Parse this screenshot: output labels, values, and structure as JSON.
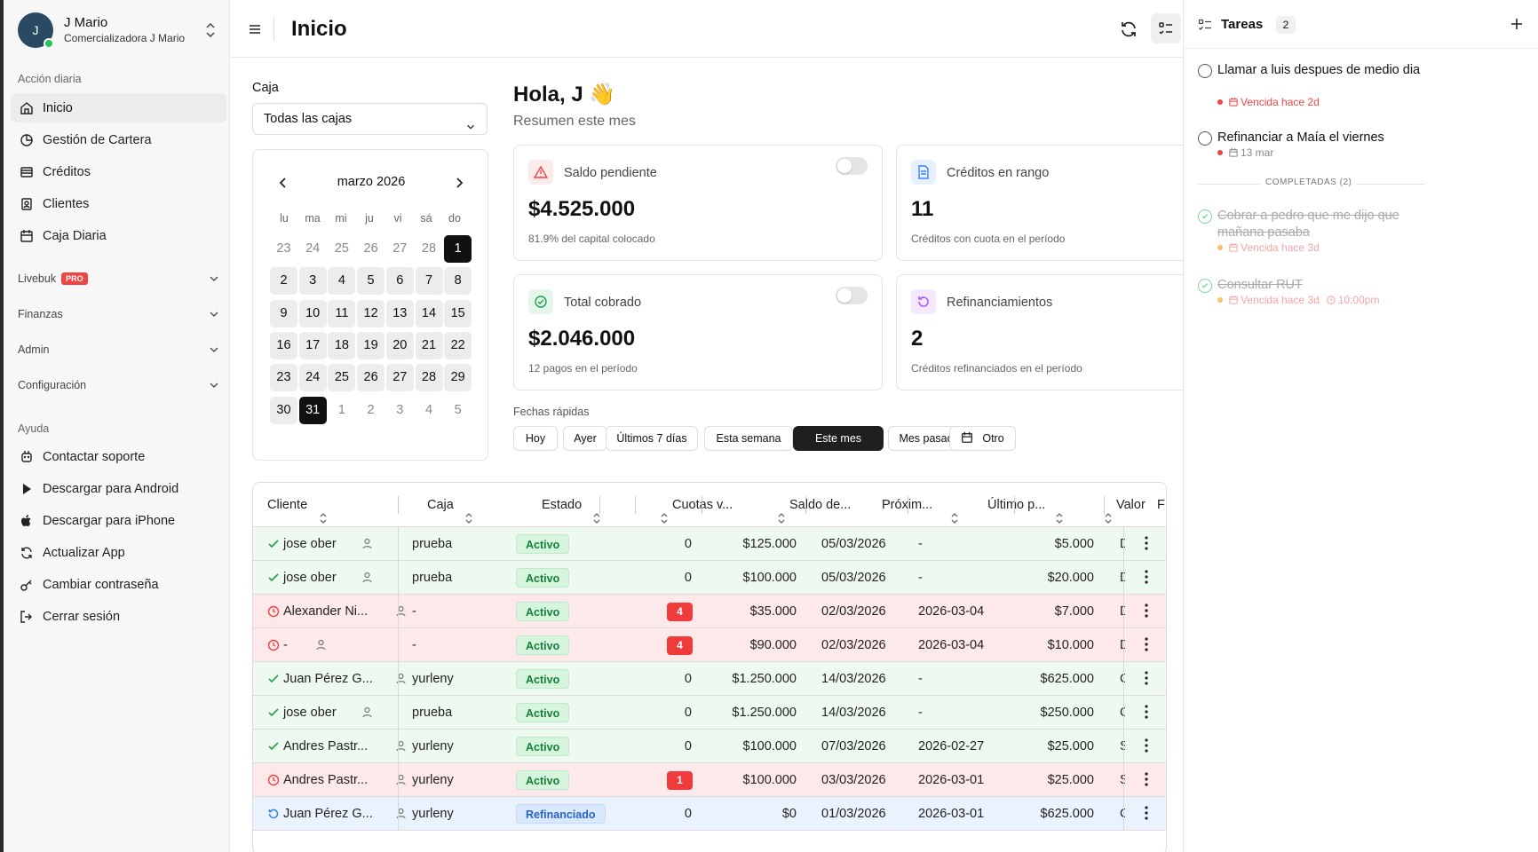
{
  "account": {
    "initial": "J",
    "name": "J Mario",
    "company": "Comercializadora J Mario"
  },
  "sidebar": {
    "sections": {
      "daily": "Acción diaria",
      "help": "Ayuda"
    },
    "items": [
      {
        "label": "Inicio",
        "icon": "home-icon"
      },
      {
        "label": "Gestión de Cartera",
        "icon": "portfolio-icon"
      },
      {
        "label": "Créditos",
        "icon": "credits-icon"
      },
      {
        "label": "Clientes",
        "icon": "clients-icon"
      },
      {
        "label": "Caja Diaria",
        "icon": "calendar-icon"
      }
    ],
    "groups": [
      {
        "label": "Livebuk",
        "badge": "PRO"
      },
      {
        "label": "Finanzas"
      },
      {
        "label": "Admin"
      },
      {
        "label": "Configuración"
      }
    ],
    "help_items": [
      {
        "label": "Contactar soporte",
        "icon": "support-icon"
      },
      {
        "label": "Descargar para Android",
        "icon": "play-icon"
      },
      {
        "label": "Descargar para iPhone",
        "icon": "apple-icon"
      },
      {
        "label": "Actualizar App",
        "icon": "refresh-icon"
      },
      {
        "label": "Cambiar contraseña",
        "icon": "key-icon"
      },
      {
        "label": "Cerrar sesión",
        "icon": "logout-icon"
      }
    ]
  },
  "header": {
    "title": "Inicio"
  },
  "caja": {
    "label": "Caja",
    "selected": "Todas las cajas"
  },
  "calendar": {
    "month": "marzo 2026",
    "dows": [
      "lu",
      "ma",
      "mi",
      "ju",
      "vi",
      "sá",
      "do"
    ],
    "days": [
      "23",
      "24",
      "25",
      "26",
      "27",
      "28",
      "1",
      "2",
      "3",
      "4",
      "5",
      "6",
      "7",
      "8",
      "9",
      "10",
      "11",
      "12",
      "13",
      "14",
      "15",
      "16",
      "17",
      "18",
      "19",
      "20",
      "21",
      "22",
      "23",
      "24",
      "25",
      "26",
      "27",
      "28",
      "29",
      "30",
      "31",
      "1",
      "2",
      "3",
      "4",
      "5"
    ],
    "range_start": 6,
    "range_end": 36
  },
  "greeting": {
    "title": "Hola, J 👋",
    "subtitle": "Resumen este mes"
  },
  "cards": [
    {
      "label": "Saldo pendiente",
      "value": "$4.525.000",
      "note": "81.9% del capital colocado",
      "icon": "warning-icon",
      "color": "#ef4444",
      "bg": "#fdeaea"
    },
    {
      "label": "Créditos en rango",
      "value": "11",
      "note": "Créditos con cuota en el período",
      "icon": "document-icon",
      "color": "#3b82f6",
      "bg": "#e8f0fd"
    },
    {
      "label": "Total cobrado",
      "value": "$2.046.000",
      "note": "12 pagos en el período",
      "icon": "check-circle-icon",
      "color": "#16a34a",
      "bg": "#e5f7ea"
    },
    {
      "label": "Refinanciamientos",
      "value": "2",
      "note": "Créditos refinanciados en el período",
      "icon": "refinance-icon",
      "color": "#a855f7",
      "bg": "#f3e8fd"
    }
  ],
  "quick": {
    "label": "Fechas rápidas",
    "buttons": [
      "Hoy",
      "Ayer",
      "Últimos 7 días",
      "Esta semana",
      "Este mes",
      "Mes pasado",
      "Otro"
    ],
    "active": 4
  },
  "table": {
    "headers": [
      "Cliente",
      "Caja",
      "Estado",
      "Cuotas v...",
      "Saldo de...",
      "Próxim...",
      "Último p...",
      "Valor c...",
      "F"
    ],
    "rows": [
      {
        "status": "ok",
        "cliente": "jose ober",
        "caja": "prueba",
        "estado": "Activo",
        "cuotas": "0",
        "saldo": "$125.000",
        "proximo": "05/03/2026",
        "ultimo": "-",
        "valor": "$5.000",
        "f": "D"
      },
      {
        "status": "ok",
        "cliente": "jose ober",
        "caja": "prueba",
        "estado": "Activo",
        "cuotas": "0",
        "saldo": "$100.000",
        "proximo": "05/03/2026",
        "ultimo": "-",
        "valor": "$20.000",
        "f": "D"
      },
      {
        "status": "late",
        "cliente": "Alexander Ni...",
        "caja": "-",
        "estado": "Activo",
        "cuotas": "4",
        "saldo": "$35.000",
        "proximo": "02/03/2026",
        "ultimo": "2026-03-04",
        "valor": "$7.000",
        "f": "D"
      },
      {
        "status": "late",
        "cliente": "-",
        "caja": "-",
        "estado": "Activo",
        "cuotas": "4",
        "saldo": "$90.000",
        "proximo": "02/03/2026",
        "ultimo": "2026-03-04",
        "valor": "$10.000",
        "f": "D"
      },
      {
        "status": "ok",
        "cliente": "Juan Pérez G...",
        "caja": "yurleny",
        "estado": "Activo",
        "cuotas": "0",
        "saldo": "$1.250.000",
        "proximo": "14/03/2026",
        "ultimo": "-",
        "valor": "$625.000",
        "f": "C"
      },
      {
        "status": "ok",
        "cliente": "jose ober",
        "caja": "prueba",
        "estado": "Activo",
        "cuotas": "0",
        "saldo": "$1.250.000",
        "proximo": "14/03/2026",
        "ultimo": "-",
        "valor": "$250.000",
        "f": "C"
      },
      {
        "status": "ok",
        "cliente": "Andres Pastr...",
        "caja": "yurleny",
        "estado": "Activo",
        "cuotas": "0",
        "saldo": "$100.000",
        "proximo": "07/03/2026",
        "ultimo": "2026-02-27",
        "valor": "$25.000",
        "f": "S"
      },
      {
        "status": "late",
        "cliente": "Andres Pastr...",
        "caja": "yurleny",
        "estado": "Activo",
        "cuotas": "1",
        "saldo": "$100.000",
        "proximo": "03/03/2026",
        "ultimo": "2026-03-01",
        "valor": "$25.000",
        "f": "S"
      },
      {
        "status": "refi",
        "cliente": "Juan Pérez G...",
        "caja": "yurleny",
        "estado": "Refinanciado",
        "cuotas": "0",
        "saldo": "$0",
        "proximo": "01/03/2026",
        "ultimo": "2026-03-01",
        "valor": "$625.000",
        "f": "C"
      }
    ]
  },
  "tasks": {
    "title": "Tareas",
    "count": "2",
    "completed_label": "COMPLETADAS (2)",
    "pending": [
      {
        "text": "Llamar a luis despues de medio dia",
        "meta": "Vencida hace 2d",
        "late": true
      },
      {
        "text": "Refinanciar a Maía el viernes",
        "meta": "13 mar",
        "late": false
      }
    ],
    "done": [
      {
        "text": "Cobrar a pedro que me dijo que mañana pasaba",
        "meta": "Vencida hace 3d",
        "time": ""
      },
      {
        "text": "Consultar RUT",
        "meta": "Vencida hace 3d",
        "time": "10:00pm"
      }
    ]
  }
}
